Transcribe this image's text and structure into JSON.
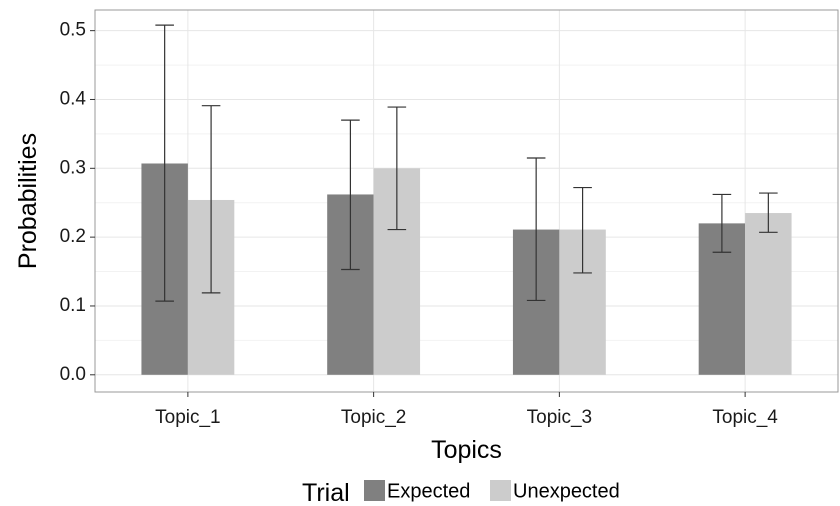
{
  "chart_data": {
    "type": "bar",
    "title": "",
    "xlabel": "Topics",
    "ylabel": "Probabilities",
    "categories": [
      "Topic_1",
      "Topic_2",
      "Topic_3",
      "Topic_4"
    ],
    "ylim": [
      -0.025,
      0.53
    ],
    "yticks": [
      0.0,
      0.1,
      0.2,
      0.3,
      0.4,
      0.5
    ],
    "ytick_labels": [
      "0.0",
      "0.1",
      "0.2",
      "0.3",
      "0.4",
      "0.5"
    ],
    "grid": true,
    "legend": {
      "title": "Trial",
      "position": "bottom"
    },
    "series": [
      {
        "name": "Expected",
        "color": "#808080",
        "values": [
          0.307,
          0.262,
          0.211,
          0.22
        ],
        "error_low": [
          0.107,
          0.153,
          0.108,
          0.178
        ],
        "error_high": [
          0.508,
          0.37,
          0.315,
          0.262
        ]
      },
      {
        "name": "Unexpected",
        "color": "#cccccc",
        "values": [
          0.254,
          0.3,
          0.211,
          0.235
        ],
        "error_low": [
          0.119,
          0.211,
          0.148,
          0.207
        ],
        "error_high": [
          0.391,
          0.389,
          0.272,
          0.264
        ]
      }
    ],
    "colors": {
      "panel_border": "#999999",
      "grid_major": "#e6e6e6",
      "grid_minor": "#f2f2f2",
      "error_bar": "#333333"
    }
  }
}
